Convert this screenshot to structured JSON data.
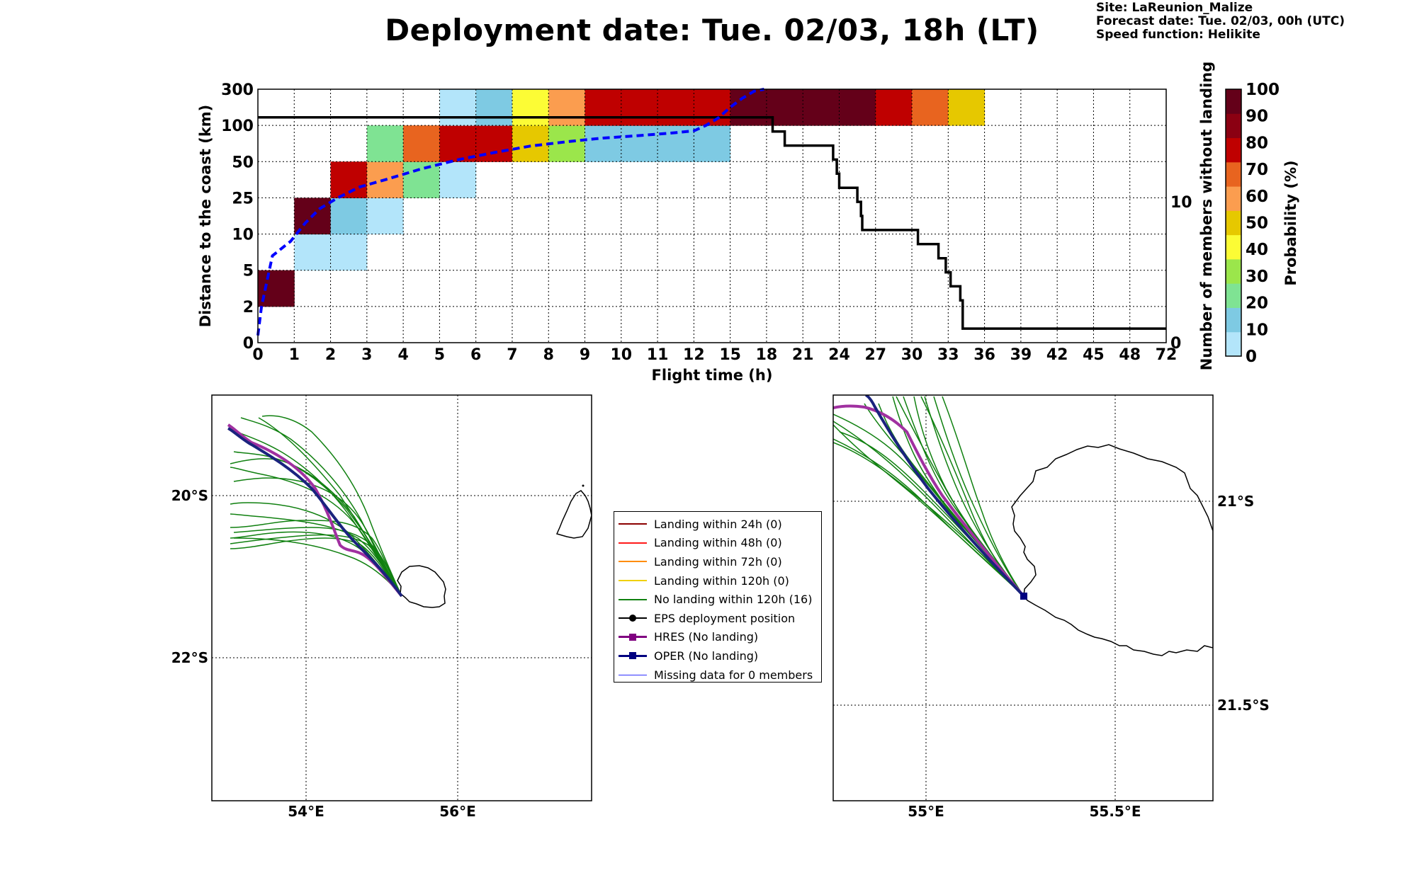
{
  "title": "Deployment date: Tue. 02/03, 18h (LT)",
  "site_info": {
    "site": "Site: LaReunion_Malize",
    "forecast_date": "Forecast date: Tue. 02/03, 00h (UTC)",
    "speed_function": "Speed function: Helikite"
  },
  "chart_data": [
    {
      "type": "heatmap",
      "xlabel": "Flight time (h)",
      "ylabel": "Distance to the coast (km)",
      "ylabel_right": "Number of members without landing",
      "colorbar_label": "Probability (%)",
      "x_ticks": [
        "0",
        "1",
        "2",
        "3",
        "4",
        "5",
        "6",
        "7",
        "8",
        "9",
        "10",
        "11",
        "12",
        "15",
        "18",
        "21",
        "24",
        "27",
        "30",
        "33",
        "36",
        "39",
        "42",
        "45",
        "48",
        "72"
      ],
      "y_ticks": [
        "0",
        "2",
        "5",
        "10",
        "25",
        "50",
        "100",
        "300"
      ],
      "y_right_ticks": [
        "0",
        "10"
      ],
      "y_right_range": [
        0,
        18
      ],
      "colorbar_ticks": [
        "0",
        "10",
        "20",
        "30",
        "40",
        "50",
        "60",
        "70",
        "80",
        "90",
        "100"
      ],
      "colorbar_colors": [
        "#b3e5fa",
        "#7ecae3",
        "#7fe393",
        "#9be64b",
        "#fcfc35",
        "#e6c800",
        "#fb9d4f",
        "#e8641f",
        "#bf0000",
        "#8b0012",
        "#640019"
      ],
      "cells": [
        {
          "x": 0,
          "y": 1,
          "p": 100
        },
        {
          "x": 1,
          "y": 2,
          "p": 0
        },
        {
          "x": 2,
          "y": 2,
          "p": 0
        },
        {
          "x": 1,
          "y": 3,
          "p": 100
        },
        {
          "x": 2,
          "y": 3,
          "p": 10
        },
        {
          "x": 3,
          "y": 3,
          "p": 0
        },
        {
          "x": 2,
          "y": 4,
          "p": 80
        },
        {
          "x": 3,
          "y": 4,
          "p": 60
        },
        {
          "x": 4,
          "y": 4,
          "p": 20
        },
        {
          "x": 5,
          "y": 4,
          "p": 0
        },
        {
          "x": 3,
          "y": 5,
          "p": 20
        },
        {
          "x": 4,
          "y": 5,
          "p": 70
        },
        {
          "x": 5,
          "y": 5,
          "p": 80
        },
        {
          "x": 6,
          "y": 5,
          "p": 80
        },
        {
          "x": 7,
          "y": 5,
          "p": 50
        },
        {
          "x": 8,
          "y": 5,
          "p": 30
        },
        {
          "x": 9,
          "y": 5,
          "p": 10
        },
        {
          "x": 10,
          "y": 5,
          "p": 10
        },
        {
          "x": 11,
          "y": 5,
          "p": 10
        },
        {
          "x": 12,
          "y": 5,
          "p": 10
        },
        {
          "x": 5,
          "y": 6,
          "p": 0
        },
        {
          "x": 6,
          "y": 6,
          "p": 10
        },
        {
          "x": 7,
          "y": 6,
          "p": 40
        },
        {
          "x": 8,
          "y": 6,
          "p": 60
        },
        {
          "x": 9,
          "y": 6,
          "p": 80
        },
        {
          "x": 10,
          "y": 6,
          "p": 80
        },
        {
          "x": 11,
          "y": 6,
          "p": 80
        },
        {
          "x": 12,
          "y": 6,
          "p": 80
        },
        {
          "x": 13,
          "y": 6,
          "p": 100
        },
        {
          "x": 14,
          "y": 6,
          "p": 100
        },
        {
          "x": 15,
          "y": 6,
          "p": 100
        },
        {
          "x": 16,
          "y": 6,
          "p": 100
        },
        {
          "x": 17,
          "y": 6,
          "p": 80
        },
        {
          "x": 18,
          "y": 6,
          "p": 70
        },
        {
          "x": 19,
          "y": 6,
          "p": 50
        }
      ],
      "members_without_landing": [
        [
          0,
          16
        ],
        [
          18.5,
          16
        ],
        [
          18.5,
          15
        ],
        [
          19.5,
          15
        ],
        [
          19.5,
          14
        ],
        [
          23.5,
          14
        ],
        [
          23.5,
          13
        ],
        [
          23.8,
          13
        ],
        [
          23.8,
          12
        ],
        [
          24,
          12
        ],
        [
          24,
          11
        ],
        [
          25.5,
          11
        ],
        [
          25.5,
          10
        ],
        [
          25.8,
          10
        ],
        [
          25.8,
          9
        ],
        [
          25.9,
          9
        ],
        [
          25.9,
          8
        ],
        [
          30.5,
          8
        ],
        [
          30.5,
          7
        ],
        [
          32.2,
          7
        ],
        [
          32.2,
          6
        ],
        [
          32.8,
          6
        ],
        [
          32.8,
          5
        ],
        [
          33.2,
          5
        ],
        [
          33.2,
          4
        ],
        [
          34,
          4
        ],
        [
          34,
          3
        ],
        [
          34.2,
          3
        ],
        [
          34.2,
          1
        ],
        [
          72,
          1
        ]
      ],
      "mean_distance_curve": [
        [
          0,
          0.2
        ],
        [
          0.1,
          1.0
        ],
        [
          0.4,
          2.4
        ],
        [
          0.9,
          2.8
        ],
        [
          1.3,
          3.3
        ],
        [
          1.7,
          3.7
        ],
        [
          2.2,
          4.0
        ],
        [
          2.8,
          4.3
        ],
        [
          3.5,
          4.5
        ],
        [
          4.5,
          4.8
        ],
        [
          5.5,
          5.05
        ],
        [
          6.5,
          5.25
        ],
        [
          7.5,
          5.43
        ],
        [
          8.5,
          5.55
        ],
        [
          9.5,
          5.65
        ],
        [
          10.5,
          5.72
        ],
        [
          11.5,
          5.8
        ],
        [
          12,
          5.85
        ],
        [
          13,
          6.0
        ],
        [
          14,
          6.2
        ],
        [
          15,
          6.5
        ],
        [
          16,
          6.75
        ],
        [
          17,
          6.95
        ],
        [
          17.8,
          7.0
        ]
      ]
    },
    {
      "type": "map",
      "name": "wide-map",
      "lon_ticks": [
        "54°E",
        "56°E"
      ],
      "lat_ticks": [
        "20°S",
        "22°S"
      ]
    },
    {
      "type": "map",
      "name": "zoom-map",
      "lon_ticks": [
        "55°E",
        "55.5°E"
      ],
      "lat_ticks": [
        "21°S",
        "21.5°S"
      ]
    }
  ],
  "legend": [
    {
      "label": "Landing within 24h (0)",
      "color": "#8b0000",
      "marker": "none",
      "width": 2
    },
    {
      "label": "Landing within 48h (0)",
      "color": "#ff1a1a",
      "marker": "none",
      "width": 2
    },
    {
      "label": "Landing within 72h (0)",
      "color": "#ff8c00",
      "marker": "none",
      "width": 2
    },
    {
      "label": "Landing within 120h (0)",
      "color": "#f0d000",
      "marker": "none",
      "width": 2
    },
    {
      "label": "No landing within 120h (16)",
      "color": "#108010",
      "marker": "none",
      "width": 2
    },
    {
      "label": "EPS deployment position",
      "color": "#000000",
      "marker": "circle",
      "width": 2
    },
    {
      "label": "HRES (No landing)",
      "color": "#800080",
      "marker": "square",
      "width": 3
    },
    {
      "label": "OPER (No landing)",
      "color": "#000080",
      "marker": "square",
      "width": 3
    },
    {
      "label": "Missing data for 0 members",
      "color": "#3030ff",
      "marker": "none",
      "width": 1
    }
  ]
}
